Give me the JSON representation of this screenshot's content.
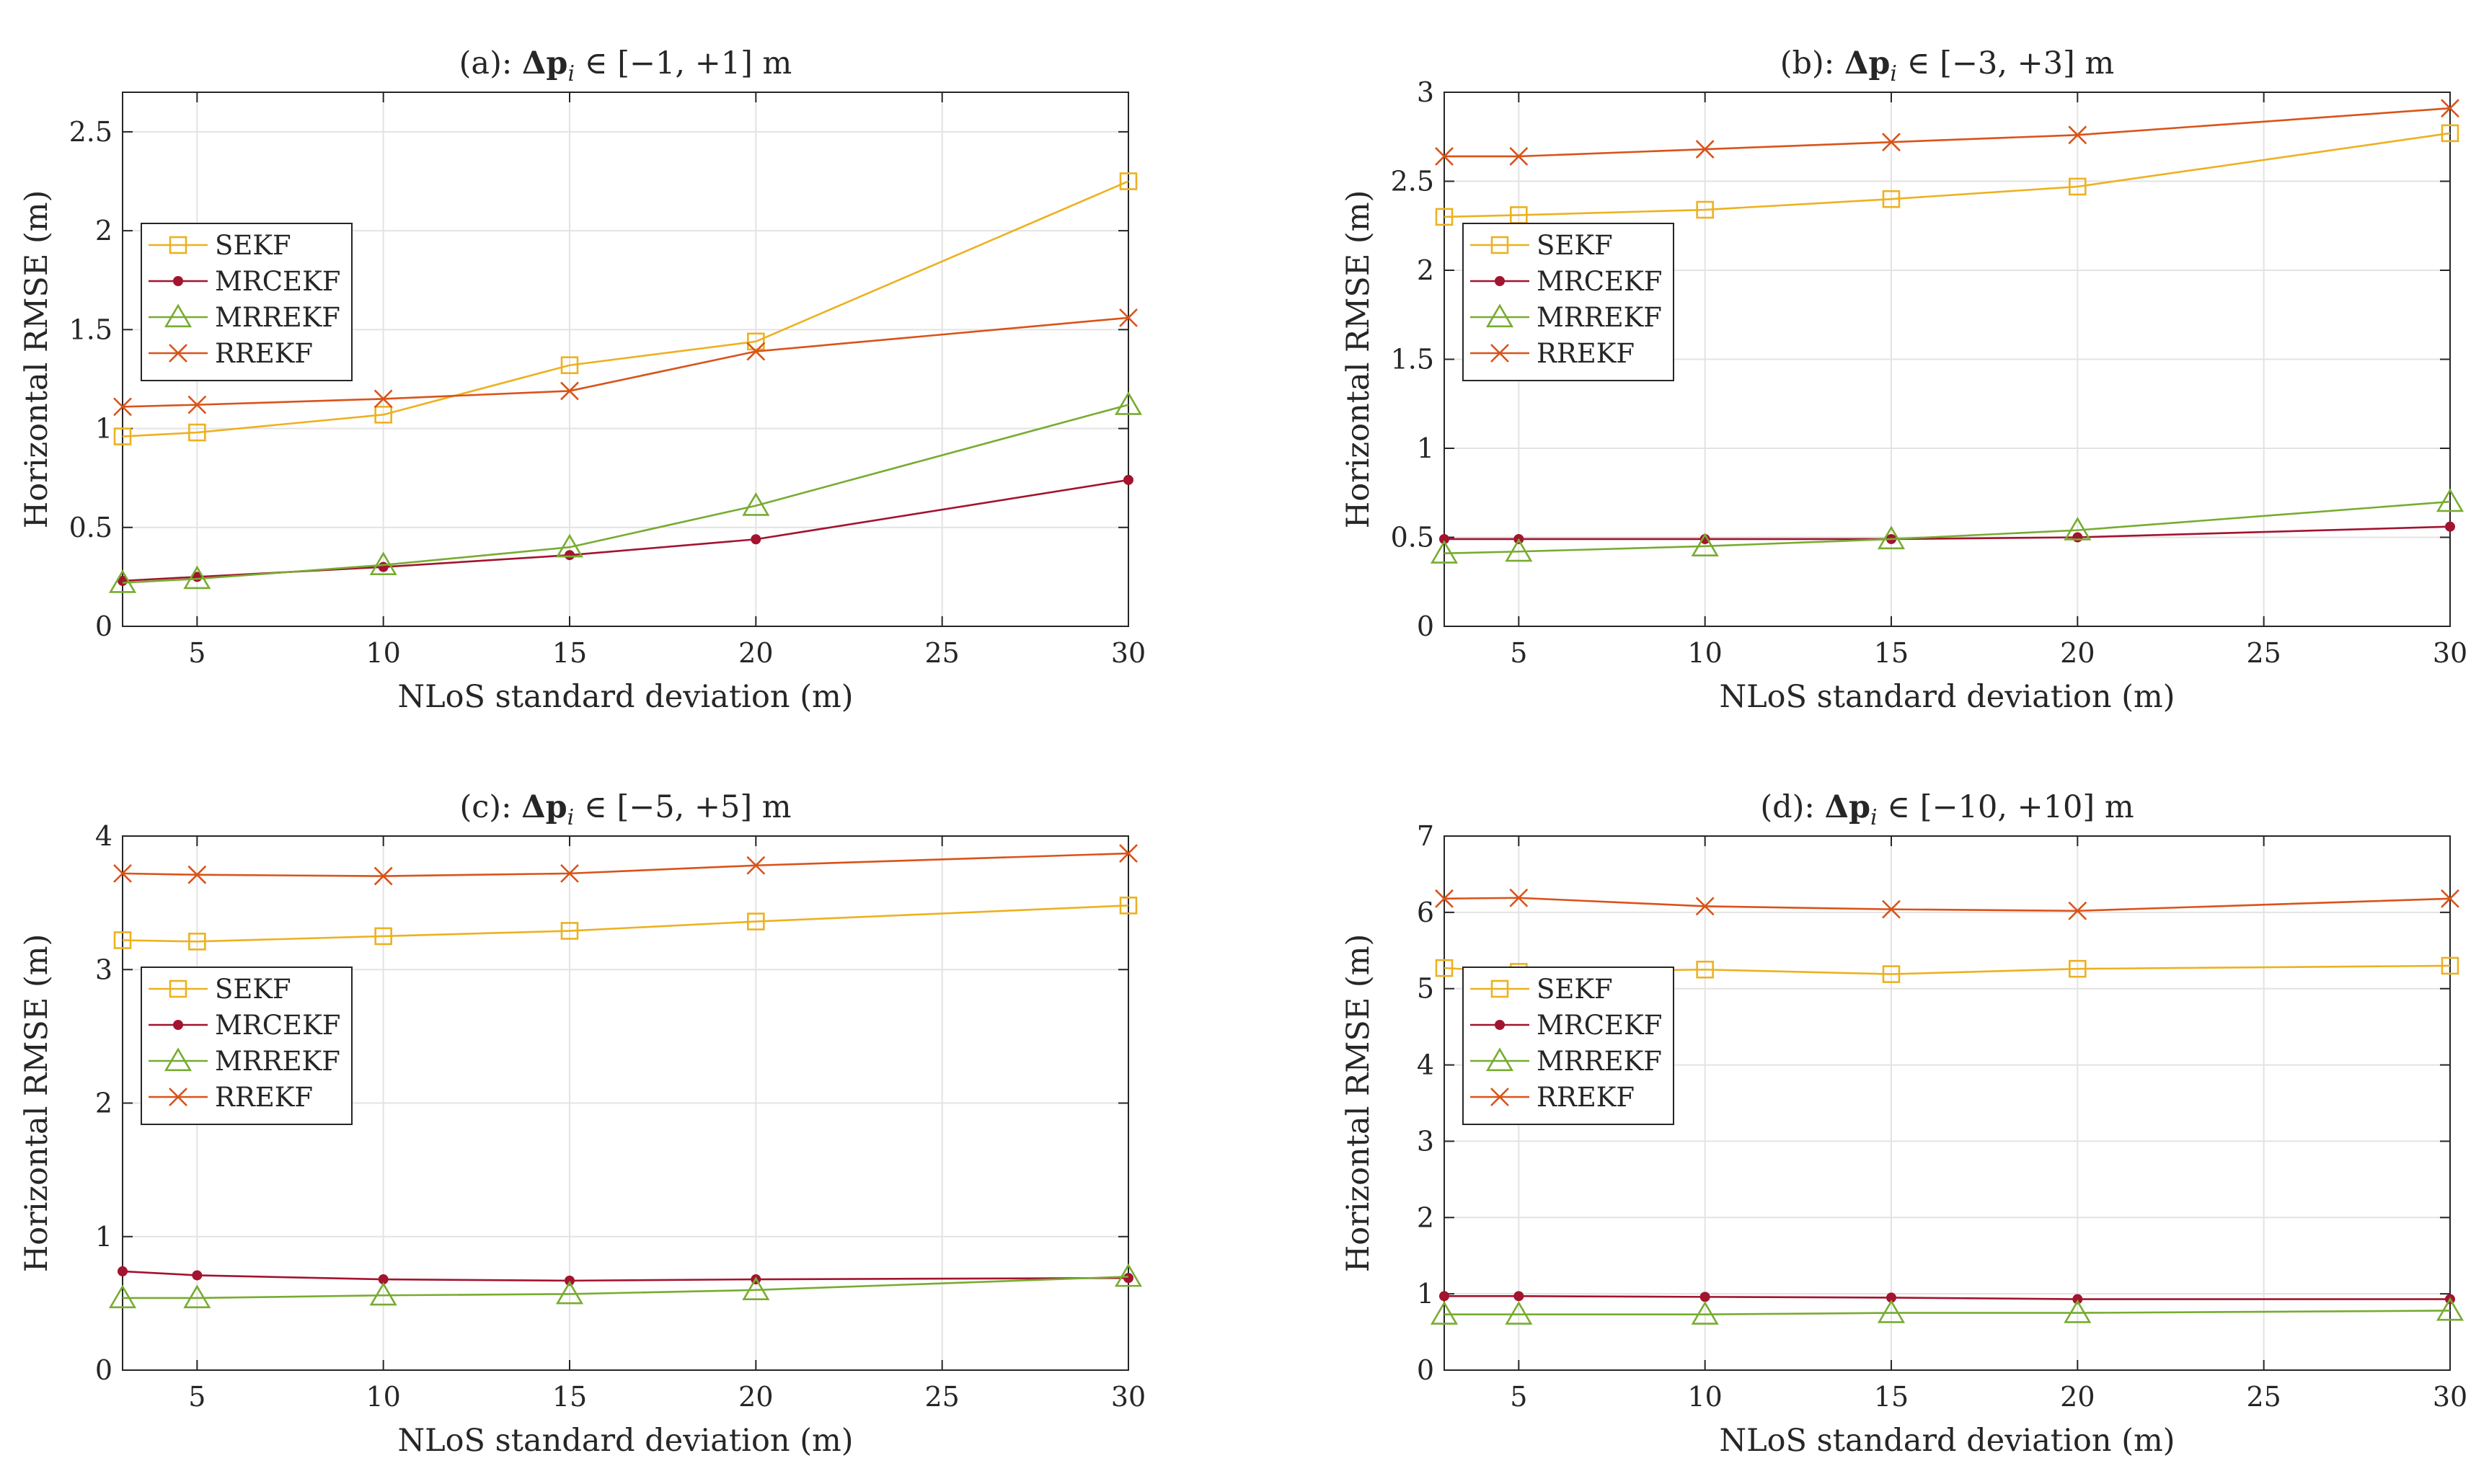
{
  "colors": {
    "SEKF": "#EDB120",
    "MRCEKF": "#A2142F",
    "MRREKF": "#77AC30",
    "RREKF": "#D95319",
    "grid": "#e3e3e3",
    "axes": "#262626"
  },
  "chart_data": [
    {
      "type": "line",
      "title_prefix": "(a): ",
      "title_math": "Δp",
      "title_sub": "i",
      "title_suffix": " ∈ [−1, +1] m",
      "xlabel": "NLoS standard deviation (m)",
      "ylabel": "Horizontal RMSE (m)",
      "xlim": [
        3,
        30
      ],
      "ylim": [
        0,
        2.7
      ],
      "xticks": [
        5,
        10,
        15,
        20,
        25,
        30
      ],
      "yticks": [
        0,
        0.5,
        1,
        1.5,
        2,
        2.5
      ],
      "ytick_labels": [
        "0",
        "0.5",
        "1",
        "1.5",
        "2",
        "2.5"
      ],
      "grid": true,
      "legend_position": "middle-left",
      "x": [
        3,
        5,
        10,
        15,
        20,
        30
      ],
      "series": [
        {
          "name": "SEKF",
          "marker": "square",
          "values": [
            0.96,
            0.98,
            1.07,
            1.32,
            1.44,
            2.25
          ]
        },
        {
          "name": "MRCEKF",
          "marker": "dot",
          "values": [
            0.23,
            0.25,
            0.3,
            0.36,
            0.44,
            0.74
          ]
        },
        {
          "name": "MRREKF",
          "marker": "triangle",
          "values": [
            0.22,
            0.24,
            0.31,
            0.4,
            0.61,
            1.12
          ]
        },
        {
          "name": "RREKF",
          "marker": "cross",
          "values": [
            1.11,
            1.12,
            1.15,
            1.19,
            1.39,
            1.56
          ]
        }
      ]
    },
    {
      "type": "line",
      "title_prefix": "(b): ",
      "title_math": "Δp",
      "title_sub": "i",
      "title_suffix": " ∈ [−3, +3] m",
      "xlabel": "NLoS standard deviation (m)",
      "ylabel": "Horizontal RMSE (m)",
      "xlim": [
        3,
        30
      ],
      "ylim": [
        0,
        3
      ],
      "xticks": [
        5,
        10,
        15,
        20,
        25,
        30
      ],
      "yticks": [
        0,
        0.5,
        1,
        1.5,
        2,
        2.5,
        3
      ],
      "ytick_labels": [
        "0",
        "0.5",
        "1",
        "1.5",
        "2",
        "2.5",
        "3"
      ],
      "grid": true,
      "legend_position": "middle-left",
      "x": [
        3,
        5,
        10,
        15,
        20,
        30
      ],
      "series": [
        {
          "name": "SEKF",
          "marker": "square",
          "values": [
            2.3,
            2.31,
            2.34,
            2.4,
            2.47,
            2.77
          ]
        },
        {
          "name": "MRCEKF",
          "marker": "dot",
          "values": [
            0.49,
            0.49,
            0.49,
            0.49,
            0.5,
            0.56
          ]
        },
        {
          "name": "MRREKF",
          "marker": "triangle",
          "values": [
            0.41,
            0.42,
            0.45,
            0.49,
            0.54,
            0.7
          ]
        },
        {
          "name": "RREKF",
          "marker": "cross",
          "values": [
            2.64,
            2.64,
            2.68,
            2.72,
            2.76,
            2.91
          ]
        }
      ]
    },
    {
      "type": "line",
      "title_prefix": "(c): ",
      "title_math": "Δp",
      "title_sub": "i",
      "title_suffix": " ∈ [−5, +5] m",
      "xlabel": "NLoS standard deviation (m)",
      "ylabel": "Horizontal RMSE (m)",
      "xlim": [
        3,
        30
      ],
      "ylim": [
        0,
        4
      ],
      "xticks": [
        5,
        10,
        15,
        20,
        25,
        30
      ],
      "yticks": [
        0,
        1,
        2,
        3,
        4
      ],
      "ytick_labels": [
        "0",
        "1",
        "2",
        "3",
        "4"
      ],
      "grid": true,
      "legend_position": "middle-left",
      "x": [
        3,
        5,
        10,
        15,
        20,
        30
      ],
      "series": [
        {
          "name": "SEKF",
          "marker": "square",
          "values": [
            3.22,
            3.21,
            3.25,
            3.29,
            3.36,
            3.48
          ]
        },
        {
          "name": "MRCEKF",
          "marker": "dot",
          "values": [
            0.74,
            0.71,
            0.68,
            0.67,
            0.68,
            0.69
          ]
        },
        {
          "name": "MRREKF",
          "marker": "triangle",
          "values": [
            0.54,
            0.54,
            0.56,
            0.57,
            0.6,
            0.7
          ]
        },
        {
          "name": "RREKF",
          "marker": "cross",
          "values": [
            3.72,
            3.71,
            3.7,
            3.72,
            3.78,
            3.87
          ]
        }
      ]
    },
    {
      "type": "line",
      "title_prefix": "(d): ",
      "title_math": "Δp",
      "title_sub": "i",
      "title_suffix": " ∈ [−10, +10] m",
      "xlabel": "NLoS standard deviation (m)",
      "ylabel": "Horizontal RMSE (m)",
      "xlim": [
        3,
        30
      ],
      "ylim": [
        0,
        7
      ],
      "xticks": [
        5,
        10,
        15,
        20,
        25,
        30
      ],
      "yticks": [
        0,
        1,
        2,
        3,
        4,
        5,
        6,
        7
      ],
      "ytick_labels": [
        "0",
        "1",
        "2",
        "3",
        "4",
        "5",
        "6",
        "7"
      ],
      "grid": true,
      "legend_position": "middle-left",
      "x": [
        3,
        5,
        10,
        15,
        20,
        30
      ],
      "series": [
        {
          "name": "SEKF",
          "marker": "square",
          "values": [
            5.27,
            5.22,
            5.25,
            5.19,
            5.26,
            5.3
          ]
        },
        {
          "name": "MRCEKF",
          "marker": "dot",
          "values": [
            0.97,
            0.97,
            0.96,
            0.95,
            0.93,
            0.93
          ]
        },
        {
          "name": "MRREKF",
          "marker": "triangle",
          "values": [
            0.73,
            0.73,
            0.73,
            0.75,
            0.75,
            0.78
          ]
        },
        {
          "name": "RREKF",
          "marker": "cross",
          "values": [
            6.18,
            6.19,
            6.08,
            6.04,
            6.02,
            6.18
          ]
        }
      ]
    }
  ]
}
